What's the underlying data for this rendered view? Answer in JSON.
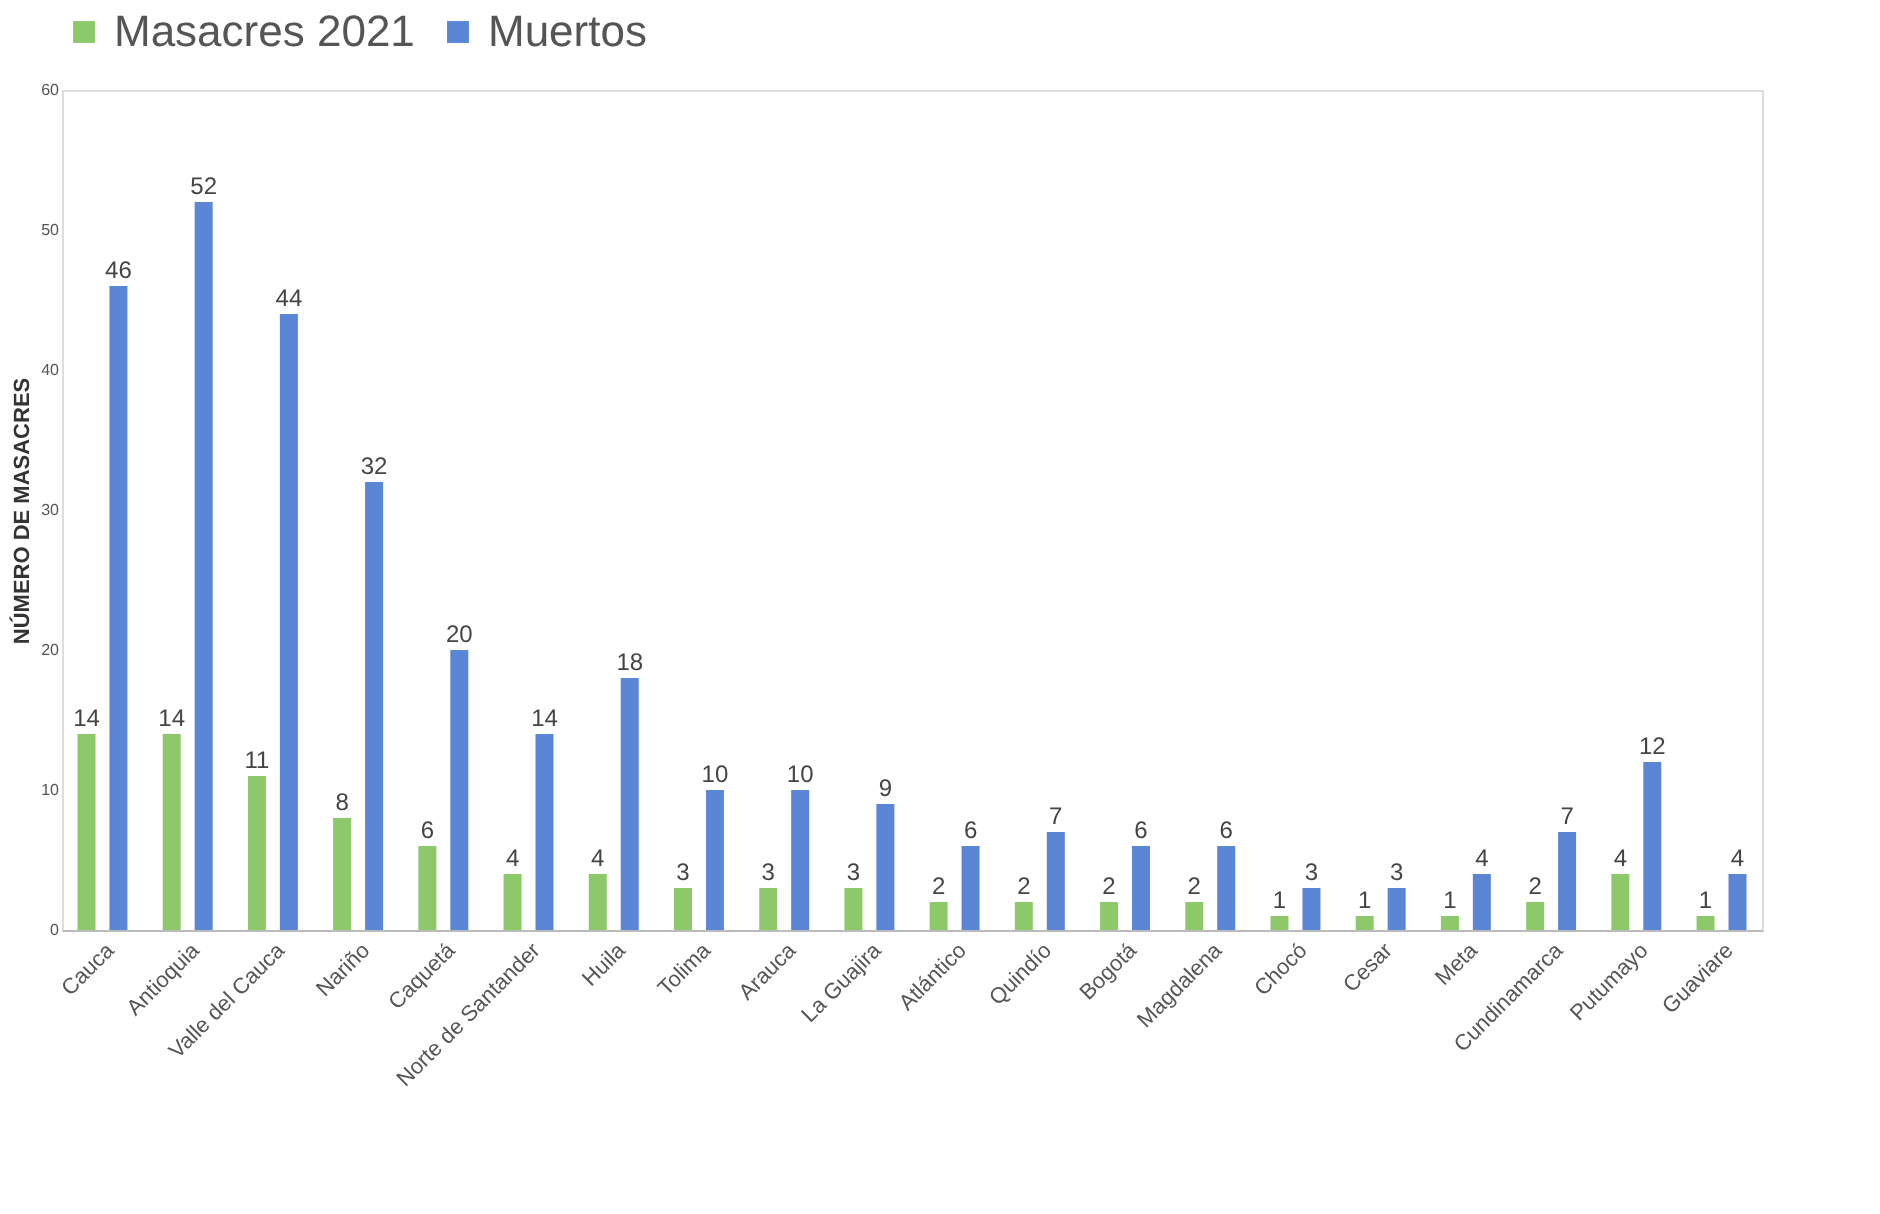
{
  "chart_data": {
    "type": "bar",
    "ylabel": "NÚMERO DE MASACRES",
    "categories": [
      "Cauca",
      "Antioquia",
      "Valle del Cauca",
      "Nariño",
      "Caquetá",
      "Norte de Santander",
      "Huila",
      "Tolima",
      "Arauca",
      "La Guajira",
      "Atlántico",
      "Quindío",
      "Bogotá",
      "Magdalena",
      "Chocó",
      "Cesar",
      "Meta",
      "Cundinamarca",
      "Putumayo",
      "Guaviare"
    ],
    "series": [
      {
        "name": "Masacres 2021",
        "color": "#8dc96a",
        "values": [
          14,
          14,
          11,
          8,
          6,
          4,
          4,
          3,
          3,
          3,
          2,
          2,
          2,
          2,
          1,
          1,
          1,
          2,
          4,
          1
        ]
      },
      {
        "name": "Muertos",
        "color": "#5b86d6",
        "values": [
          46,
          52,
          44,
          32,
          20,
          14,
          18,
          10,
          10,
          9,
          6,
          7,
          6,
          6,
          3,
          3,
          4,
          7,
          12,
          4
        ]
      }
    ],
    "ylim": [
      0,
      60
    ],
    "yticks": [
      0,
      10,
      20,
      30,
      40,
      50,
      60
    ],
    "grid": false,
    "legend": "top",
    "data_labels": true
  }
}
